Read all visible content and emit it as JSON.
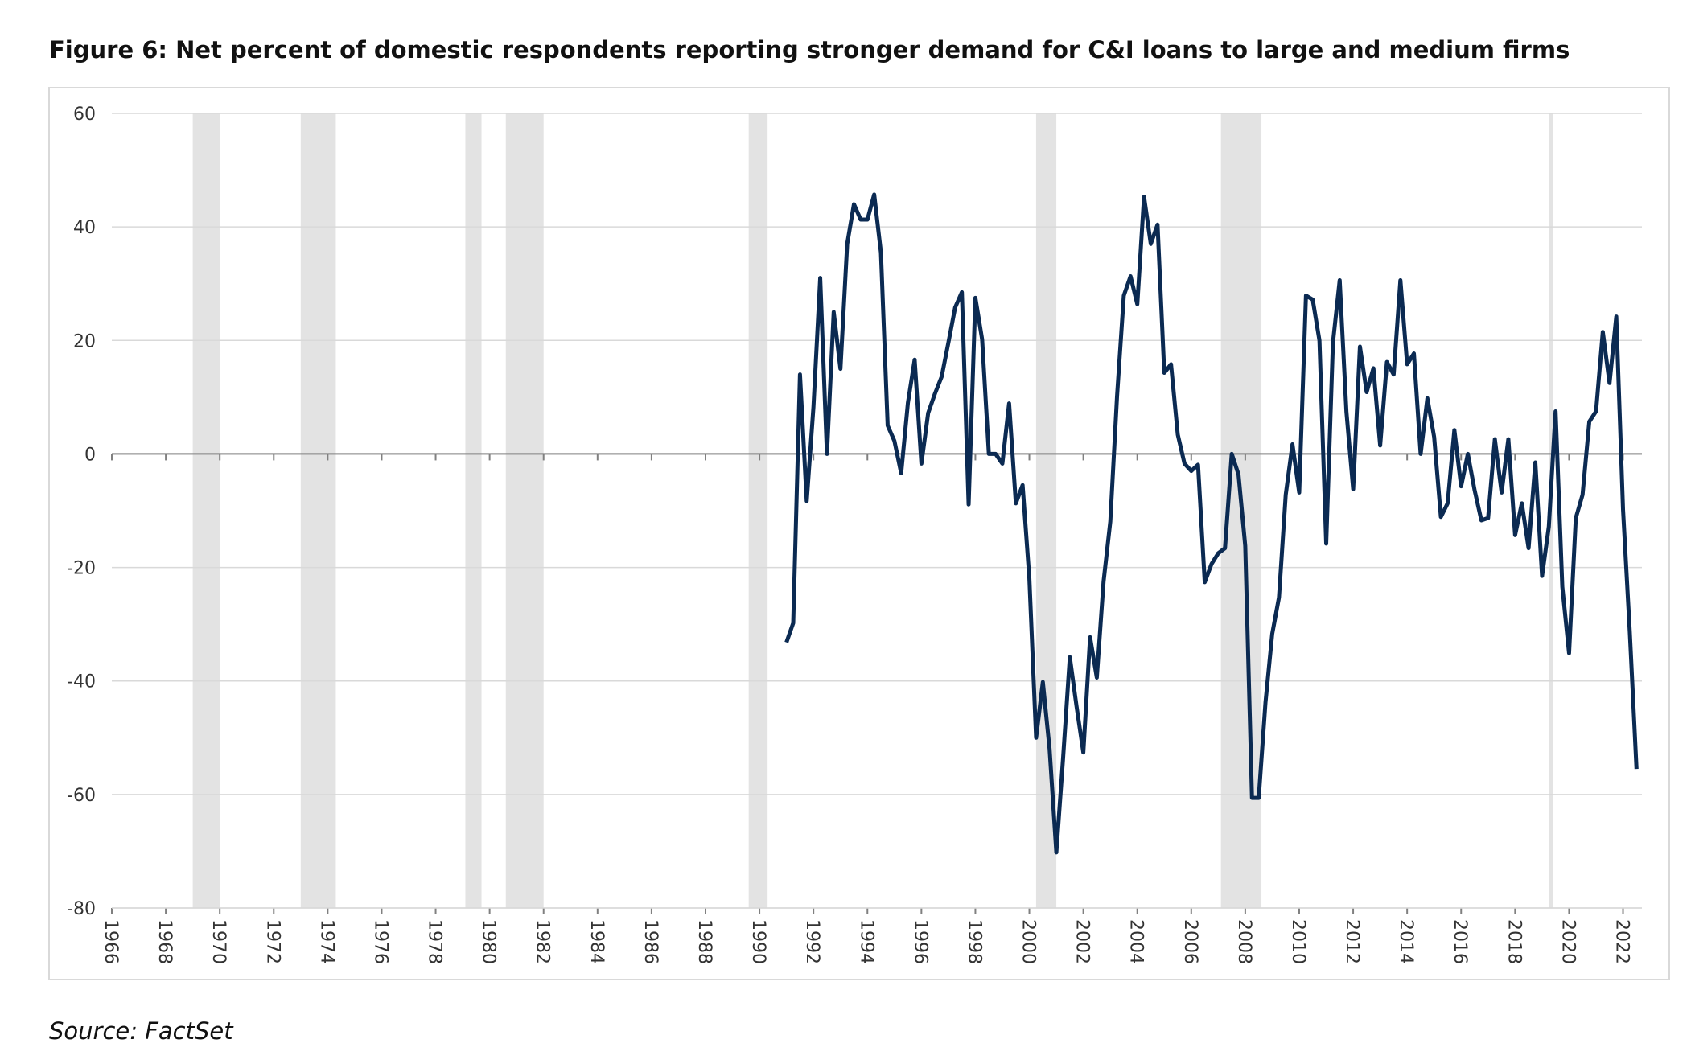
{
  "chart_data": {
    "type": "line",
    "title": "Figure 6: Net percent of domestic respondents reporting stronger demand for C&I loans to large and medium firms",
    "source": "Source: FactSet",
    "xlim": [
      1966,
      2022.7
    ],
    "ylim": [
      -80,
      60
    ],
    "xticks": [
      1966,
      1968,
      1970,
      1972,
      1974,
      1976,
      1978,
      1980,
      1982,
      1984,
      1986,
      1988,
      1990,
      1992,
      1994,
      1996,
      1998,
      2000,
      2002,
      2004,
      2006,
      2008,
      2010,
      2012,
      2014,
      2016,
      2018,
      2020,
      2022
    ],
    "yticks": [
      -80,
      -60,
      -40,
      -20,
      0,
      20,
      40,
      60
    ],
    "grid": true,
    "recessions": [
      [
        1969.0,
        1970.0
      ],
      [
        1973.0,
        1974.3
      ],
      [
        1979.1,
        1979.7
      ],
      [
        1980.6,
        1982.0
      ],
      [
        1989.6,
        1990.3
      ],
      [
        2000.25,
        2001.0
      ],
      [
        2007.1,
        2008.6
      ],
      [
        2019.25,
        2019.4
      ]
    ],
    "recession_color": "#e3e3e3",
    "x": [
      1991,
      1991.25,
      1991.5,
      1991.75,
      1992,
      1992.25,
      1992.5,
      1992.75,
      1993,
      1993.25,
      1993.5,
      1993.75,
      1994,
      1994.25,
      1994.5,
      1994.75,
      1995,
      1995.25,
      1995.5,
      1995.75,
      1996,
      1996.25,
      1996.5,
      1996.75,
      1997,
      1997.25,
      1997.5,
      1997.75,
      1998,
      1998.25,
      1998.5,
      1998.75,
      1999,
      1999.25,
      1999.5,
      1999.75,
      2000,
      2000.25,
      2000.5,
      2000.75,
      2001,
      2001.25,
      2001.5,
      2001.75,
      2002,
      2002.25,
      2002.5,
      2002.75,
      2003,
      2003.25,
      2003.5,
      2003.75,
      2004,
      2004.25,
      2004.5,
      2004.75,
      2005,
      2005.25,
      2005.5,
      2005.75,
      2006,
      2006.25,
      2006.5,
      2006.75,
      2007,
      2007.25,
      2007.5,
      2007.75,
      2008,
      2008.25,
      2008.5,
      2008.75,
      2009,
      2009.25,
      2009.5,
      2009.75,
      2010,
      2010.25,
      2010.5,
      2010.75,
      2011,
      2011.25,
      2011.5,
      2011.75,
      2012,
      2012.25,
      2012.5,
      2012.75,
      2013,
      2013.25,
      2013.5,
      2013.75,
      2014,
      2014.25,
      2014.5,
      2014.75,
      2015,
      2015.25,
      2015.5,
      2015.75,
      2016,
      2016.25,
      2016.5,
      2016.75,
      2017,
      2017.25,
      2017.5,
      2017.75,
      2018,
      2018.25,
      2018.5,
      2018.75,
      2019,
      2019.25,
      2019.5,
      2019.75,
      2020,
      2020.25,
      2020.5,
      2020.75,
      2021,
      2021.25,
      2021.5,
      2021.75,
      2022,
      2022.25,
      2022.5
    ],
    "series": [
      {
        "color": "#0b2a52",
        "values": [
          -33.2,
          -29.8,
          14,
          -8.3,
          8.3,
          31,
          0,
          25,
          15,
          37,
          44,
          41.3,
          41.3,
          45.7,
          35.5,
          5,
          2.3,
          -3.4,
          9,
          16.6,
          -1.7,
          7.2,
          10.6,
          13.6,
          19.6,
          25.8,
          28.5,
          -8.9,
          27.5,
          20.2,
          0,
          0,
          -1.7,
          8.9,
          -8.7,
          -5.5,
          -21.9,
          -50,
          -40.2,
          -52,
          -70.2,
          -53.6,
          -35.8,
          -44.5,
          -52.6,
          -32.3,
          -39.4,
          -22.5,
          -11.9,
          10.2,
          27.9,
          31.3,
          26.4,
          45.3,
          37,
          40.4,
          14.3,
          15.8,
          3.4,
          -1.7,
          -3,
          -1.9,
          -22.6,
          -19.4,
          -17.5,
          -16.6,
          0,
          -3.6,
          -16.2,
          -60.6,
          -60.6,
          -43.8,
          -31.7,
          -25.3,
          -7.2,
          1.7,
          -6.8,
          27.9,
          27.2,
          20,
          -15.8,
          19.6,
          30.6,
          7.4,
          -6.2,
          18.9,
          10.9,
          15.1,
          1.5,
          16.2,
          14,
          30.6,
          15.8,
          17.7,
          0,
          9.8,
          3,
          -11.1,
          -8.7,
          4.2,
          -5.7,
          0,
          -6.4,
          -11.7,
          -11.3,
          2.6,
          -6.8,
          2.6,
          -14.3,
          -8.7,
          -16.6,
          -1.5,
          -21.5,
          -12.8,
          7.5,
          -23.4,
          -35.1,
          -11.3,
          -7.2,
          5.7,
          7.5,
          21.5,
          12.5,
          24.2,
          -9.8,
          -31.3,
          -55.5
        ]
      }
    ]
  }
}
